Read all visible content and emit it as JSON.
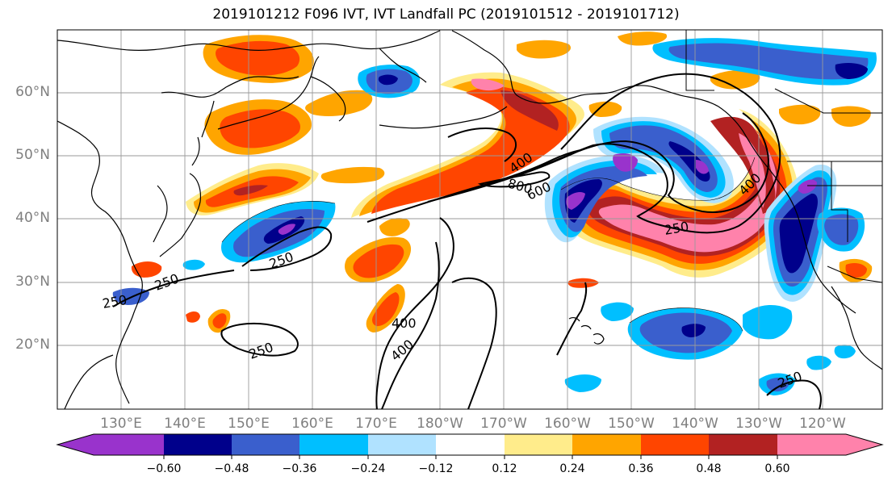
{
  "title": "2019101212 F096 IVT, IVT Landfall PC (2019101512 - 2019101712)",
  "latitude_labels": [
    "60°N",
    "50°N",
    "40°N",
    "30°N",
    "20°N"
  ],
  "longitude_labels": [
    "130°E",
    "140°E",
    "150°E",
    "160°E",
    "170°E",
    "180°W",
    "170°W",
    "160°W",
    "150°W",
    "140°W",
    "130°W",
    "120°W"
  ],
  "contour_labels": [
    "400",
    "800",
    "600",
    "400",
    "250",
    "250",
    "250",
    "250",
    "250",
    "400",
    "400",
    "250"
  ],
  "colorbar": {
    "tick_labels": [
      "−0.60",
      "−0.48",
      "−0.36",
      "−0.24",
      "−0.12",
      "0.12",
      "0.24",
      "0.36",
      "0.48",
      "0.60"
    ],
    "colors": [
      "#9933cc",
      "#00008b",
      "#3a5fcd",
      "#00bfff",
      "#b0e2ff",
      "#ffffff",
      "#ffec8b",
      "#ffa500",
      "#ff4500",
      "#b22222",
      "#ff82ab"
    ],
    "extend": "both"
  },
  "fill_colors": {
    "neg_strong": "#9933cc",
    "neg_1": "#00008b",
    "neg_2": "#3a5fcd",
    "neg_3": "#00bfff",
    "neg_4": "#b0e2ff",
    "pos_1": "#ffec8b",
    "pos_2": "#ffa500",
    "pos_3": "#ff4500",
    "pos_4": "#b22222",
    "pos_strong": "#ff82ab"
  }
}
